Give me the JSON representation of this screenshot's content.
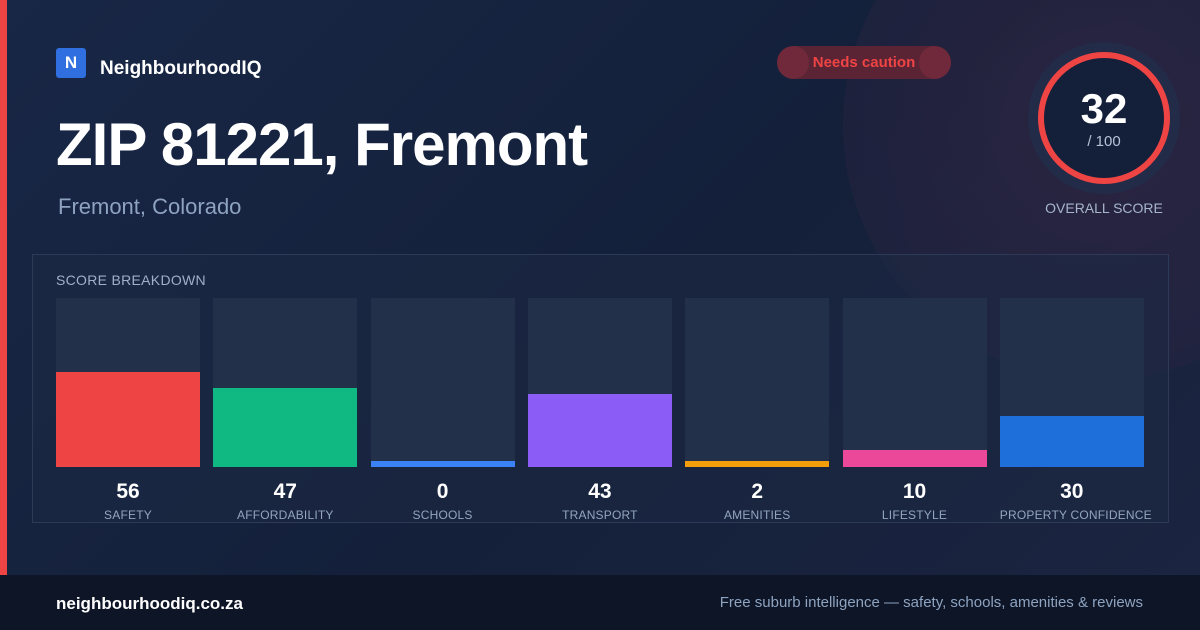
{
  "brand": {
    "logo_letter": "N",
    "name": "NeighbourhoodIQ",
    "color": "#2f6fe0"
  },
  "badge": {
    "label": "Needs caution",
    "color": "#ef4444"
  },
  "header": {
    "title": "ZIP 81221, Fremont",
    "subtitle": "Fremont, Colorado"
  },
  "overall": {
    "value": "32",
    "max": "/ 100",
    "label": "OVERALL SCORE",
    "ring_color": "#ef4444"
  },
  "breakdown": {
    "title": "SCORE BREAKDOWN",
    "max": 100,
    "items": [
      {
        "label": "SAFETY",
        "value": 56,
        "color": "#ef4444"
      },
      {
        "label": "AFFORDABILITY",
        "value": 47,
        "color": "#10b981"
      },
      {
        "label": "SCHOOLS",
        "value": 0,
        "color": "#3b82f6"
      },
      {
        "label": "TRANSPORT",
        "value": 43,
        "color": "#8b5cf6"
      },
      {
        "label": "AMENITIES",
        "value": 2,
        "color": "#f59e0b"
      },
      {
        "label": "LIFESTYLE",
        "value": 10,
        "color": "#ec4899"
      },
      {
        "label": "PROPERTY CONFIDENCE",
        "value": 30,
        "color": "#1e6fd9"
      }
    ]
  },
  "footer": {
    "domain": "neighbourhoodiq.co.za",
    "tagline": "Free suburb intelligence — safety, schools, amenities & reviews"
  }
}
